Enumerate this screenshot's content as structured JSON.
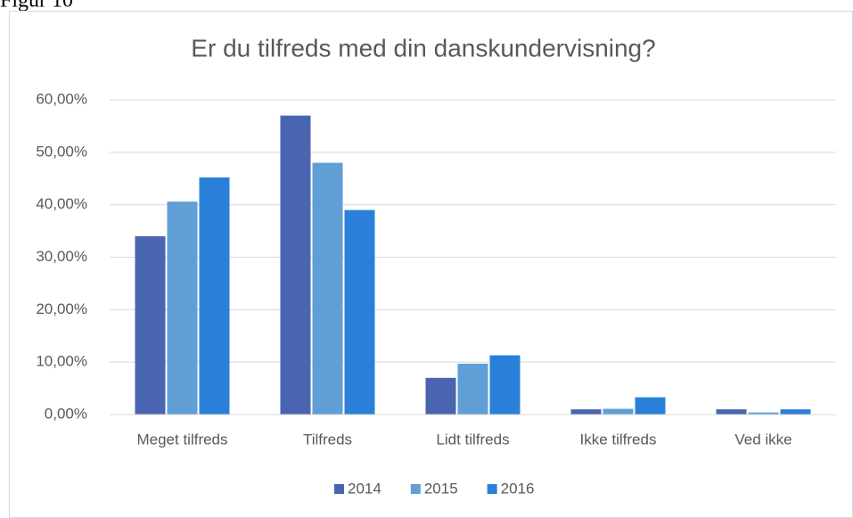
{
  "caption": "Figur 10",
  "chart_data": {
    "type": "bar",
    "title": "Er du tilfreds med din danskundervisning?",
    "categories": [
      "Meget tilfreds",
      "Tilfreds",
      "Lidt tilfreds",
      "Ikke tilfreds",
      "Ved ikke"
    ],
    "series": [
      {
        "name": "2014",
        "color": "#4a65b0",
        "values": [
          34,
          57,
          7,
          1,
          1
        ]
      },
      {
        "name": "2015",
        "color": "#5f9fd6",
        "values": [
          40.6,
          48,
          9.7,
          1.1,
          0.4
        ]
      },
      {
        "name": "2016",
        "color": "#2a80d9",
        "values": [
          45.2,
          39,
          11.3,
          3.3,
          1
        ]
      }
    ],
    "ylim": [
      0,
      60
    ],
    "yticks": [
      {
        "value": 0,
        "label": "0,00%"
      },
      {
        "value": 10,
        "label": "10,00%"
      },
      {
        "value": 20,
        "label": "20,00%"
      },
      {
        "value": 30,
        "label": "30,00%"
      },
      {
        "value": 40,
        "label": "40,00%"
      },
      {
        "value": 50,
        "label": "50,00%"
      },
      {
        "value": 60,
        "label": "60,00%"
      }
    ],
    "grid": true,
    "legend": "bottom"
  }
}
